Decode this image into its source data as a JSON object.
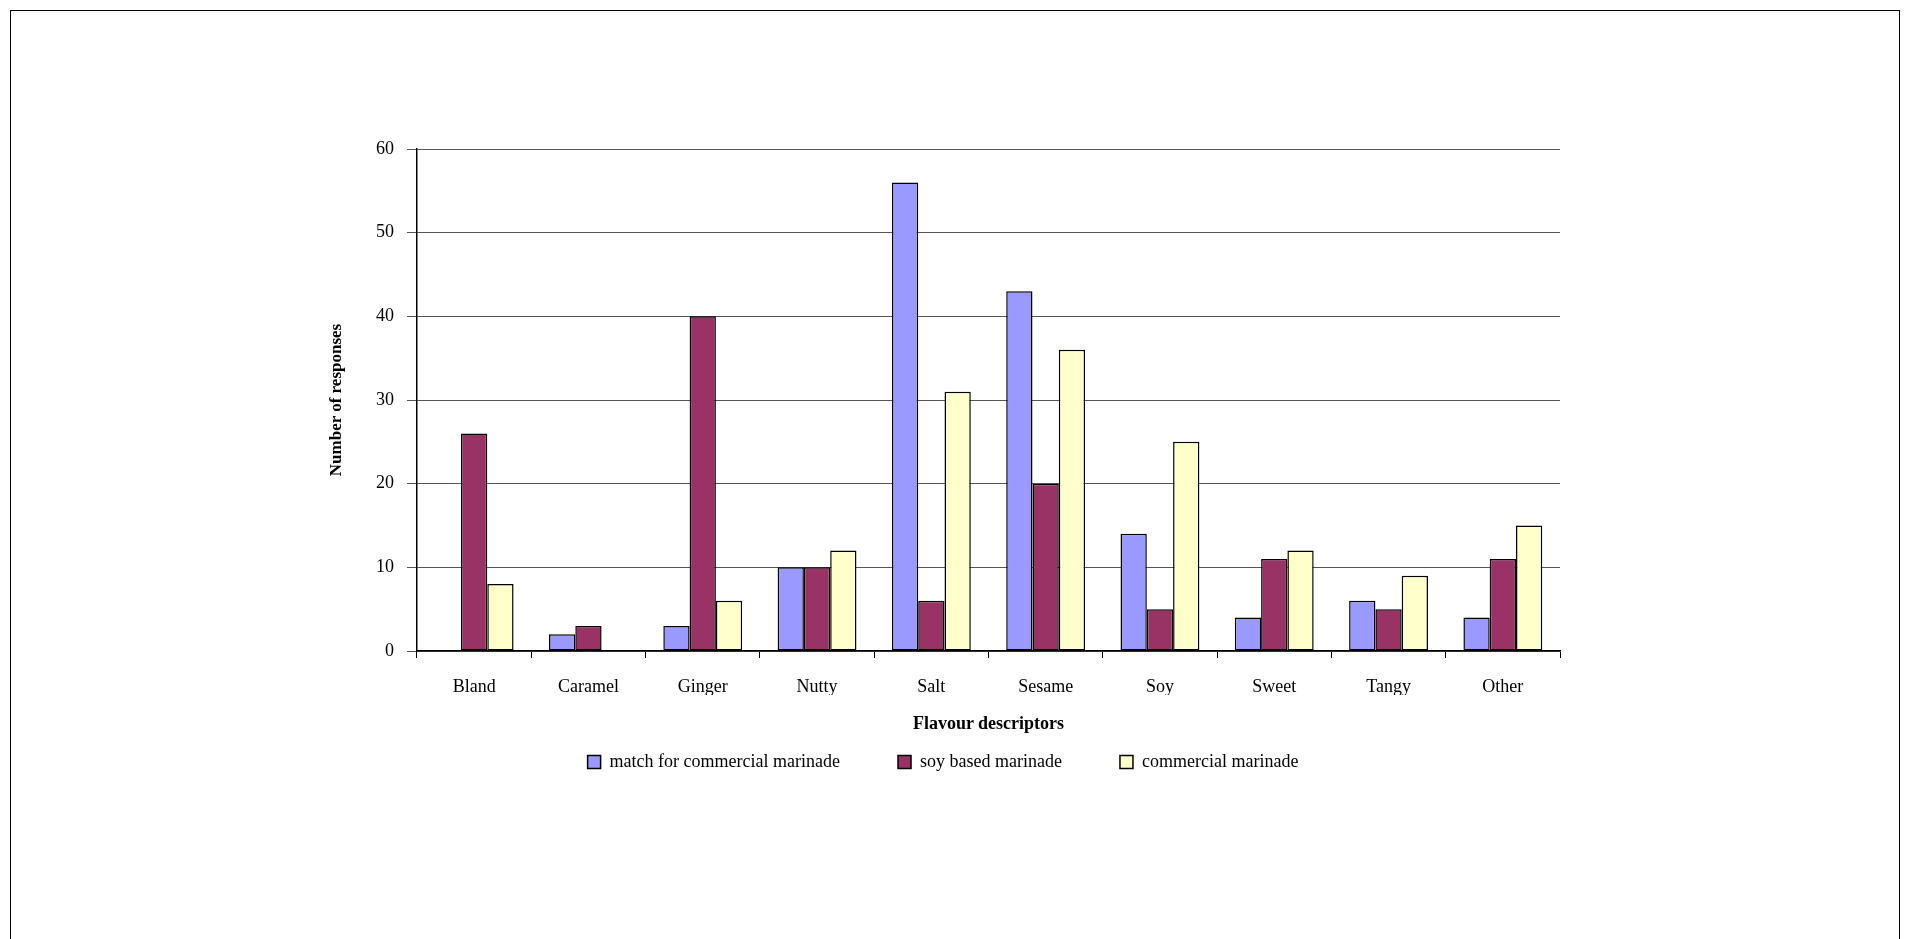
{
  "chart_data": {
    "type": "bar",
    "xlabel": "Flavour descriptors",
    "ylabel": "Number of responses",
    "categories": [
      "Bland",
      "Caramel",
      "Ginger",
      "Nutty",
      "Salt",
      "Sesame",
      "Soy",
      "Sweet",
      "Tangy",
      "Other"
    ],
    "series": [
      {
        "name": "match for commercial marinade",
        "color": "#9999ff",
        "values": [
          null,
          2,
          3,
          10,
          56,
          43,
          14,
          4,
          6,
          4
        ]
      },
      {
        "name": "soy based marinade",
        "color": "#993366",
        "values": [
          26,
          3,
          40,
          10,
          6,
          20,
          5,
          11,
          5,
          11
        ]
      },
      {
        "name": "commercial marinade",
        "color": "#ffffcc",
        "values": [
          8,
          null,
          6,
          12,
          31,
          36,
          25,
          12,
          9,
          15
        ]
      }
    ],
    "ylim": [
      0,
      60
    ],
    "yticks": [
      0,
      10,
      20,
      30,
      40,
      50,
      60
    ],
    "grid": "y",
    "legend": "bottom"
  }
}
